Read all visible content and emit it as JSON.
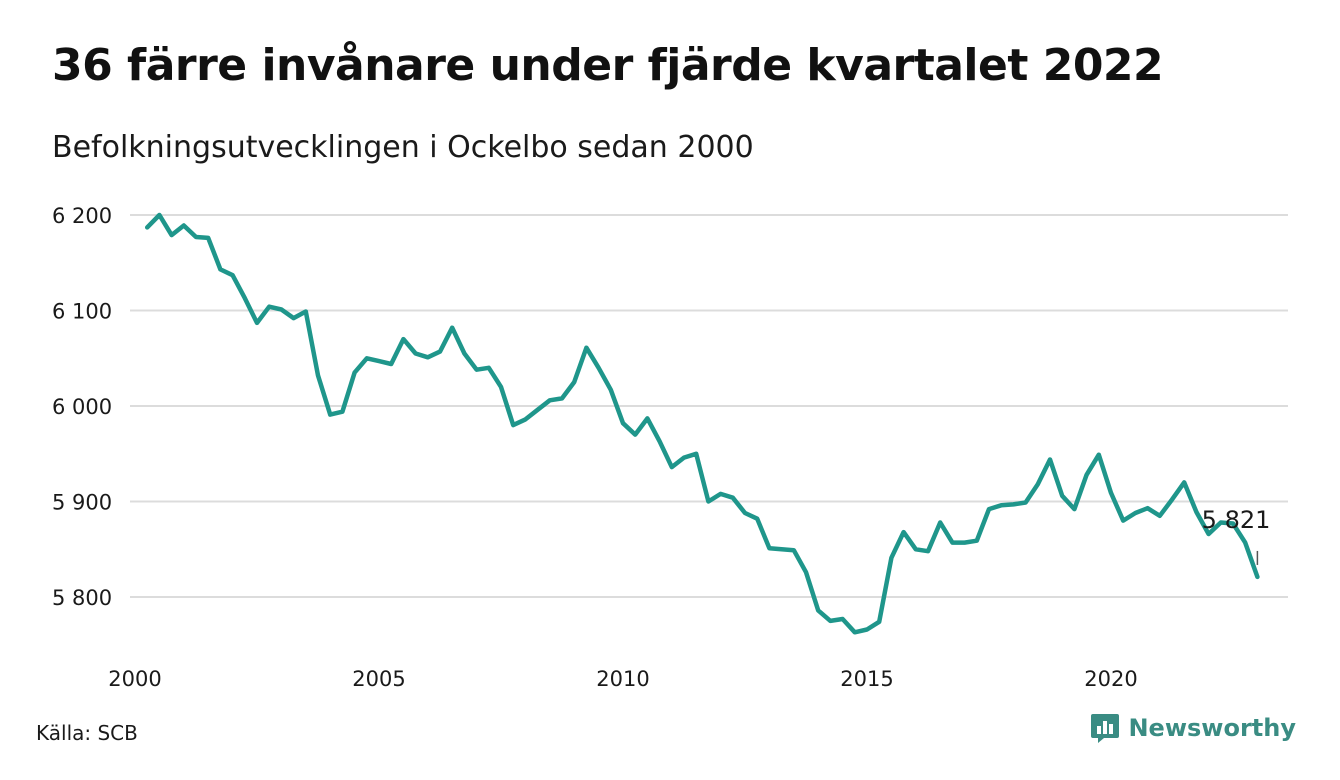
{
  "header": {
    "title": "36 färre invånare under fjärde kvartalet 2022",
    "subtitle": "Befolkningsutvecklingen i Ockelbo sedan 2000"
  },
  "footer": {
    "source": "Källa: SCB",
    "brand": "Newsworthy",
    "brand_icon": "bar-chart-speech-bubble-icon",
    "brand_color": "#3a8c83"
  },
  "chart_data": {
    "type": "line",
    "title": "36 färre invånare under fjärde kvartalet 2022",
    "subtitle": "Befolkningsutvecklingen i Ockelbo sedan 2000",
    "xlabel": "",
    "ylabel": "",
    "xlim": [
      2000,
      2023
    ],
    "ylim": [
      5750,
      6215
    ],
    "y_ticks": [
      {
        "value": 5800,
        "label": "5 800"
      },
      {
        "value": 5900,
        "label": "5 900"
      },
      {
        "value": 6000,
        "label": "6 000"
      },
      {
        "value": 6100,
        "label": "6 100"
      },
      {
        "value": 6200,
        "label": "6 200"
      }
    ],
    "x_ticks": [
      {
        "value": 2000,
        "label": "2000"
      },
      {
        "value": 2005,
        "label": "2005"
      },
      {
        "value": 2010,
        "label": "2010"
      },
      {
        "value": 2015,
        "label": "2015"
      },
      {
        "value": 2020,
        "label": "2020"
      }
    ],
    "grid": "horizontal",
    "line_color": "#1f968b",
    "last_value_label": "5 821",
    "series": [
      {
        "x": [
          2000.25,
          2000.5,
          2000.75,
          2001,
          2001.25,
          2001.5,
          2001.75,
          2002,
          2002.25,
          2002.5,
          2002.75,
          2003,
          2003.25,
          2003.5,
          2003.75,
          2004,
          2004.25,
          2004.5,
          2004.75,
          2005,
          2005.25,
          2005.5,
          2005.75,
          2006,
          2006.25,
          2006.5,
          2006.75,
          2007,
          2007.25,
          2007.5,
          2007.75,
          2008,
          2008.25,
          2008.5,
          2008.75,
          2009,
          2009.25,
          2009.5,
          2009.75,
          2010,
          2010.25,
          2010.5,
          2010.75,
          2011,
          2011.25,
          2011.5,
          2011.75,
          2012,
          2012.25,
          2012.5,
          2012.75,
          2013,
          2013.25,
          2013.5,
          2013.75,
          2014,
          2014.25,
          2014.5,
          2014.75,
          2015,
          2015.25,
          2015.5,
          2015.75,
          2016,
          2016.25,
          2016.5,
          2016.75,
          2017,
          2017.25,
          2017.5,
          2017.75,
          2018,
          2018.25,
          2018.5,
          2018.75,
          2019,
          2019.25,
          2019.5,
          2019.75,
          2020,
          2020.25,
          2020.5,
          2020.75,
          2021,
          2021.25,
          2021.5,
          2021.75,
          2022,
          2022.25,
          2022.5,
          2022.75,
          2023
        ],
        "values": [
          6187,
          6200,
          6179,
          6189,
          6177,
          6176,
          6143,
          6137,
          6113,
          6087,
          6104,
          6101,
          6092,
          6099,
          6032,
          5991,
          5994,
          6035,
          6050,
          6047,
          6044,
          6070,
          6055,
          6051,
          6057,
          6082,
          6055,
          6038,
          6040,
          6020,
          5980,
          5986,
          5996,
          6006,
          6008,
          6025,
          6061,
          6040,
          6017,
          5982,
          5970,
          5987,
          5963,
          5936,
          5946,
          5950,
          5900,
          5908,
          5904,
          5888,
          5882,
          5851,
          5850,
          5849,
          5826,
          5786,
          5775,
          5777,
          5763,
          5766,
          5774,
          5841,
          5868,
          5850,
          5848,
          5878,
          5857,
          5857,
          5859,
          5892,
          5896,
          5897,
          5899,
          5918,
          5944,
          5906,
          5892,
          5928,
          5949,
          5909,
          5880,
          5888,
          5893,
          5885,
          5902,
          5920,
          5889,
          5866,
          5878,
          5877,
          5857,
          5821
        ]
      }
    ]
  }
}
